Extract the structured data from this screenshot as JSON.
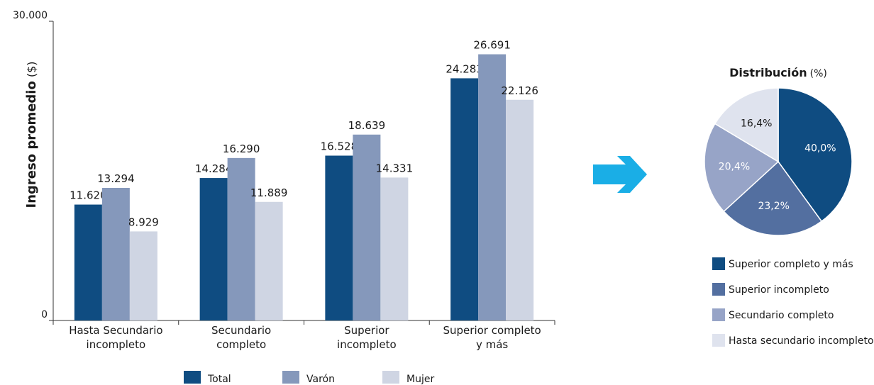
{
  "chart_data": [
    {
      "type": "bar",
      "ylabel_main": "Ingreso promedio",
      "ylabel_unit": "($)",
      "ylim": [
        0,
        30000
      ],
      "yticks": [
        {
          "value": 0,
          "label": "0"
        },
        {
          "value": 30000,
          "label": "30.000"
        }
      ],
      "grid": false,
      "legend_position": "bottom",
      "categories": [
        [
          "Hasta Secundario",
          "incompleto"
        ],
        [
          "Secundario",
          "completo"
        ],
        [
          "Superior",
          "incompleto"
        ],
        [
          "Superior completo",
          "y más"
        ]
      ],
      "series": [
        {
          "name": "Total",
          "color": "#0f4c81",
          "values": [
            11620,
            14284,
            16528,
            24283
          ],
          "labels": [
            "11.620",
            "14.284",
            "16.528",
            "24.283"
          ]
        },
        {
          "name": "Varón",
          "color": "#8598bb",
          "values": [
            13294,
            16290,
            18639,
            26691
          ],
          "labels": [
            "13.294",
            "16.290",
            "18.639",
            "26.691"
          ]
        },
        {
          "name": "Mujer",
          "color": "#cfd5e3",
          "values": [
            8929,
            11889,
            14331,
            22126
          ],
          "labels": [
            "8.929",
            "11.889",
            "14.331",
            "22.126"
          ]
        }
      ]
    },
    {
      "type": "pie",
      "title_main": "Distribución",
      "title_unit": "(%)",
      "legend_position": "bottom",
      "slices": [
        {
          "name": "Superior completo y más",
          "value": 40.0,
          "label": "40,0%",
          "color": "#0f4c81",
          "label_color": "#ffffff"
        },
        {
          "name": "Superior incompleto",
          "value": 23.2,
          "label": "23,2%",
          "color": "#536fa0",
          "label_color": "#ffffff"
        },
        {
          "name": "Secundario completo",
          "value": 20.4,
          "label": "20,4%",
          "color": "#97a4c7",
          "label_color": "#ffffff"
        },
        {
          "name": "Hasta secundario incompleto",
          "value": 16.4,
          "label": "16,4%",
          "color": "#dfe3ee",
          "label_color": "#1a1a1a"
        }
      ]
    }
  ],
  "arrow": {
    "icon": "right-arrow-icon",
    "color": "#1aaee6"
  }
}
